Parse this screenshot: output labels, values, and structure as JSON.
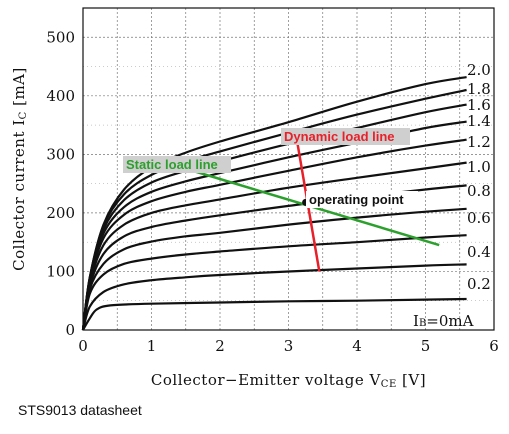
{
  "chart_data": {
    "type": "line",
    "xlabel": "Collector−Emitter voltage V",
    "xlabel_sub": "CE",
    "xlabel_unit": " [V]",
    "ylabel": "Collector current I",
    "ylabel_sub": "C",
    "ylabel_unit": " [mA]",
    "xlim": [
      0,
      6
    ],
    "ylim": [
      0,
      550
    ],
    "x_ticks": [
      0,
      1,
      2,
      3,
      4,
      5,
      6
    ],
    "y_ticks": [
      0,
      100,
      200,
      300,
      400,
      500
    ],
    "grid": true,
    "series": [
      {
        "name": "2.0",
        "points": [
          [
            0,
            0
          ],
          [
            0.1,
            90
          ],
          [
            0.3,
            180
          ],
          [
            0.6,
            240
          ],
          [
            1,
            278
          ],
          [
            1.5,
            303
          ],
          [
            2,
            322
          ],
          [
            3,
            355
          ],
          [
            4,
            390
          ],
          [
            5,
            420
          ],
          [
            5.6,
            432
          ]
        ]
      },
      {
        "name": "1.8",
        "points": [
          [
            0,
            0
          ],
          [
            0.1,
            90
          ],
          [
            0.3,
            178
          ],
          [
            0.6,
            232
          ],
          [
            1,
            265
          ],
          [
            1.5,
            288
          ],
          [
            2,
            305
          ],
          [
            3,
            337
          ],
          [
            4,
            368
          ],
          [
            5,
            395
          ],
          [
            5.6,
            410
          ]
        ]
      },
      {
        "name": "1.6",
        "points": [
          [
            0,
            0
          ],
          [
            0.1,
            88
          ],
          [
            0.3,
            172
          ],
          [
            0.6,
            222
          ],
          [
            1,
            252
          ],
          [
            1.5,
            272
          ],
          [
            2,
            288
          ],
          [
            3,
            318
          ],
          [
            4,
            345
          ],
          [
            5,
            372
          ],
          [
            5.6,
            385
          ]
        ]
      },
      {
        "name": "1.4",
        "points": [
          [
            0,
            0
          ],
          [
            0.1,
            86
          ],
          [
            0.3,
            165
          ],
          [
            0.6,
            210
          ],
          [
            1,
            236
          ],
          [
            1.5,
            254
          ],
          [
            2,
            268
          ],
          [
            3,
            295
          ],
          [
            4,
            320
          ],
          [
            5,
            345
          ],
          [
            5.6,
            356
          ]
        ]
      },
      {
        "name": "1.2",
        "points": [
          [
            0,
            0
          ],
          [
            0.1,
            84
          ],
          [
            0.3,
            157
          ],
          [
            0.6,
            197
          ],
          [
            1,
            220
          ],
          [
            1.5,
            236
          ],
          [
            2,
            248
          ],
          [
            3,
            272
          ],
          [
            4,
            295
          ],
          [
            5,
            315
          ],
          [
            5.6,
            325
          ]
        ]
      },
      {
        "name": "1.0",
        "points": [
          [
            0,
            0
          ],
          [
            0.1,
            80
          ],
          [
            0.3,
            145
          ],
          [
            0.6,
            180
          ],
          [
            1,
            200
          ],
          [
            1.5,
            213
          ],
          [
            2,
            223
          ],
          [
            3,
            243
          ],
          [
            4,
            260
          ],
          [
            5,
            276
          ],
          [
            5.6,
            286
          ]
        ]
      },
      {
        "name": "0.8",
        "points": [
          [
            0,
            0
          ],
          [
            0.1,
            75
          ],
          [
            0.3,
            130
          ],
          [
            0.6,
            160
          ],
          [
            1,
            176
          ],
          [
            1.5,
            187
          ],
          [
            2,
            196
          ],
          [
            3,
            212
          ],
          [
            4,
            227
          ],
          [
            5,
            240
          ],
          [
            5.6,
            247
          ]
        ]
      },
      {
        "name": "0.6",
        "points": [
          [
            0,
            0
          ],
          [
            0.1,
            70
          ],
          [
            0.3,
            113
          ],
          [
            0.6,
            138
          ],
          [
            1,
            151
          ],
          [
            1.5,
            160
          ],
          [
            2,
            166
          ],
          [
            3,
            180
          ],
          [
            4,
            192
          ],
          [
            5,
            202
          ],
          [
            5.6,
            207
          ]
        ]
      },
      {
        "name": "0.4",
        "points": [
          [
            0,
            0
          ],
          [
            0.1,
            62
          ],
          [
            0.3,
            95
          ],
          [
            0.6,
            113
          ],
          [
            1,
            122
          ],
          [
            1.5,
            129
          ],
          [
            2,
            134
          ],
          [
            3,
            143
          ],
          [
            4,
            150
          ],
          [
            5,
            158
          ],
          [
            5.6,
            162
          ]
        ]
      },
      {
        "name": "0.2",
        "points": [
          [
            0,
            0
          ],
          [
            0.1,
            40
          ],
          [
            0.3,
            65
          ],
          [
            0.6,
            78
          ],
          [
            1,
            85
          ],
          [
            1.5,
            90
          ],
          [
            2,
            94
          ],
          [
            3,
            100
          ],
          [
            4,
            105
          ],
          [
            5,
            110
          ],
          [
            5.6,
            112
          ]
        ]
      },
      {
        "name": "IB=0mA",
        "points": [
          [
            0,
            0
          ],
          [
            0.1,
            20
          ],
          [
            0.2,
            35
          ],
          [
            0.4,
            42
          ],
          [
            1,
            45
          ],
          [
            2,
            47
          ],
          [
            3,
            49
          ],
          [
            4,
            50
          ],
          [
            5,
            52
          ],
          [
            5.6,
            53
          ]
        ]
      }
    ],
    "curve_labels": [
      "2.0",
      "1.8",
      "1.6",
      "1.4",
      "1.2",
      "1.0",
      "0.8",
      "0.6",
      "0.4",
      "0.2"
    ],
    "ib_zero_label": "IB=0mA",
    "annotations": {
      "static_load_line": {
        "label": "Static load line",
        "color": "#2ca02c",
        "label_bg": "#cfcfcf",
        "from": [
          1.6,
          272
        ],
        "to": [
          5.2,
          145
        ]
      },
      "dynamic_load_line": {
        "label": "Dynamic load line",
        "color": "#e8202a",
        "label_bg": "#cfcfcf",
        "from": [
          3.1,
          340
        ],
        "to": [
          3.45,
          100
        ]
      },
      "operating_point": {
        "label": "operating point",
        "color": "#111111",
        "label_bg": "#ffffff",
        "at": [
          3.25,
          218
        ]
      }
    }
  },
  "caption": "STS9013 datasheet"
}
